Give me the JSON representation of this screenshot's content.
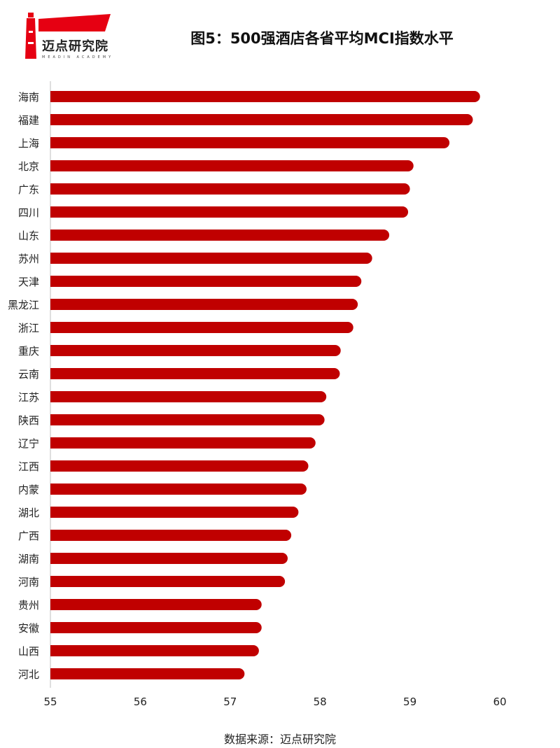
{
  "logo": {
    "text": "迈点研究院",
    "subtext": "MEADIN ACADEMY",
    "color": "#e60012"
  },
  "source": "数据来源：迈点研究院",
  "chart_data": {
    "type": "bar",
    "orientation": "horizontal",
    "title": "图5：500强酒店各省平均MCI指数水平",
    "xlabel": "",
    "ylabel": "",
    "xlim": [
      55,
      60
    ],
    "xticks": [
      55,
      56,
      57,
      58,
      59,
      60
    ],
    "bar_color": "#c00000",
    "categories": [
      "海南",
      "福建",
      "上海",
      "北京",
      "广东",
      "四川",
      "山东",
      "苏州",
      "天津",
      "黑龙江",
      "浙江",
      "重庆",
      "云南",
      "江苏",
      "陕西",
      "辽宁",
      "江西",
      "内蒙",
      "湖北",
      "广西",
      "湖南",
      "河南",
      "贵州",
      "安徽",
      "山西",
      "河北"
    ],
    "values": [
      59.78,
      59.7,
      59.44,
      59.04,
      59.0,
      58.98,
      58.77,
      58.58,
      58.46,
      58.42,
      58.37,
      58.23,
      58.22,
      58.07,
      58.05,
      57.95,
      57.87,
      57.85,
      57.76,
      57.68,
      57.64,
      57.61,
      57.35,
      57.35,
      57.32,
      57.16
    ]
  }
}
